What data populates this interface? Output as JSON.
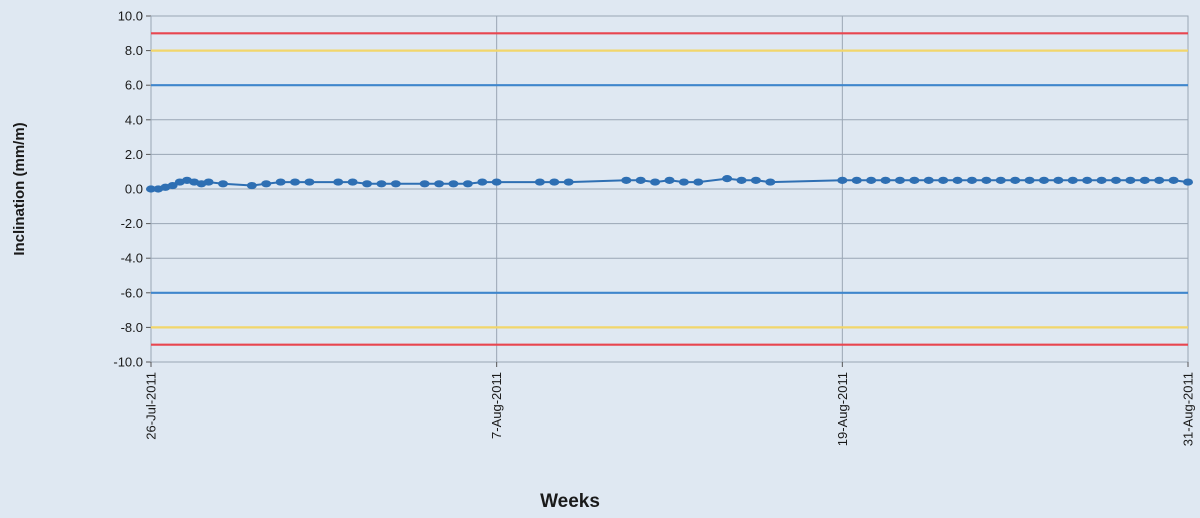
{
  "chart_data": {
    "type": "line",
    "title": "",
    "xlabel": "Weeks",
    "ylabel": "Inclination (mm/m)",
    "ylim": [
      -10,
      10
    ],
    "xlim": [
      "2011-07-26",
      "2011-08-31"
    ],
    "y_ticks": [
      "10.0",
      "8.0",
      "6.0",
      "4.0",
      "2.0",
      "0.0",
      "-2.0",
      "-4.0",
      "-6.0",
      "-8.0",
      "-10.0"
    ],
    "x_ticks": [
      {
        "date": "2011-07-26",
        "label": "26-Jul-2011"
      },
      {
        "date": "2011-08-07",
        "label": "7-Aug-2011"
      },
      {
        "date": "2011-08-19",
        "label": "19-Aug-2011"
      },
      {
        "date": "2011-08-31",
        "label": "31-Aug-2011"
      }
    ],
    "grid": true,
    "legend": "none",
    "threshold_lines": [
      {
        "value": 9,
        "color": "#e8464f"
      },
      {
        "value": 8,
        "color": "#f2d66b"
      },
      {
        "value": 6,
        "color": "#3f86cc"
      },
      {
        "value": -6,
        "color": "#3f86cc"
      },
      {
        "value": -8,
        "color": "#f2d66b"
      },
      {
        "value": -9,
        "color": "#e8464f"
      }
    ],
    "series": [
      {
        "color": "#2e6fb3",
        "points": [
          [
            "2011-07-26T00:00",
            0.0
          ],
          [
            "2011-07-26T06:00",
            0.0
          ],
          [
            "2011-07-26T12:00",
            0.1
          ],
          [
            "2011-07-26T18:00",
            0.2
          ],
          [
            "2011-07-27T00:00",
            0.4
          ],
          [
            "2011-07-27T06:00",
            0.5
          ],
          [
            "2011-07-27T12:00",
            0.4
          ],
          [
            "2011-07-27T18:00",
            0.3
          ],
          [
            "2011-07-28T00:00",
            0.4
          ],
          [
            "2011-07-28T12:00",
            0.3
          ],
          [
            "2011-07-29T12:00",
            0.2
          ],
          [
            "2011-07-30T00:00",
            0.3
          ],
          [
            "2011-07-30T12:00",
            0.4
          ],
          [
            "2011-07-31T00:00",
            0.4
          ],
          [
            "2011-07-31T12:00",
            0.4
          ],
          [
            "2011-08-01T12:00",
            0.4
          ],
          [
            "2011-08-02T00:00",
            0.4
          ],
          [
            "2011-08-02T12:00",
            0.3
          ],
          [
            "2011-08-03T00:00",
            0.3
          ],
          [
            "2011-08-03T12:00",
            0.3
          ],
          [
            "2011-08-04T12:00",
            0.3
          ],
          [
            "2011-08-05T00:00",
            0.3
          ],
          [
            "2011-08-05T12:00",
            0.3
          ],
          [
            "2011-08-06T00:00",
            0.3
          ],
          [
            "2011-08-06T12:00",
            0.4
          ],
          [
            "2011-08-07T00:00",
            0.4
          ],
          [
            "2011-08-08T12:00",
            0.4
          ],
          [
            "2011-08-09T00:00",
            0.4
          ],
          [
            "2011-08-09T12:00",
            0.4
          ],
          [
            "2011-08-11T12:00",
            0.5
          ],
          [
            "2011-08-12T00:00",
            0.5
          ],
          [
            "2011-08-12T12:00",
            0.4
          ],
          [
            "2011-08-13T00:00",
            0.5
          ],
          [
            "2011-08-13T12:00",
            0.4
          ],
          [
            "2011-08-14T00:00",
            0.4
          ],
          [
            "2011-08-15T00:00",
            0.6
          ],
          [
            "2011-08-15T12:00",
            0.5
          ],
          [
            "2011-08-16T00:00",
            0.5
          ],
          [
            "2011-08-16T12:00",
            0.4
          ],
          [
            "2011-08-19T00:00",
            0.5
          ],
          [
            "2011-08-19T12:00",
            0.5
          ],
          [
            "2011-08-20T00:00",
            0.5
          ],
          [
            "2011-08-20T12:00",
            0.5
          ],
          [
            "2011-08-21T00:00",
            0.5
          ],
          [
            "2011-08-21T12:00",
            0.5
          ],
          [
            "2011-08-22T00:00",
            0.5
          ],
          [
            "2011-08-22T12:00",
            0.5
          ],
          [
            "2011-08-23T00:00",
            0.5
          ],
          [
            "2011-08-23T12:00",
            0.5
          ],
          [
            "2011-08-24T00:00",
            0.5
          ],
          [
            "2011-08-24T12:00",
            0.5
          ],
          [
            "2011-08-25T00:00",
            0.5
          ],
          [
            "2011-08-25T12:00",
            0.5
          ],
          [
            "2011-08-26T00:00",
            0.5
          ],
          [
            "2011-08-26T12:00",
            0.5
          ],
          [
            "2011-08-27T00:00",
            0.5
          ],
          [
            "2011-08-27T12:00",
            0.5
          ],
          [
            "2011-08-28T00:00",
            0.5
          ],
          [
            "2011-08-28T12:00",
            0.5
          ],
          [
            "2011-08-29T00:00",
            0.5
          ],
          [
            "2011-08-29T12:00",
            0.5
          ],
          [
            "2011-08-30T00:00",
            0.5
          ],
          [
            "2011-08-30T12:00",
            0.5
          ],
          [
            "2011-08-31T00:00",
            0.4
          ]
        ]
      }
    ]
  }
}
